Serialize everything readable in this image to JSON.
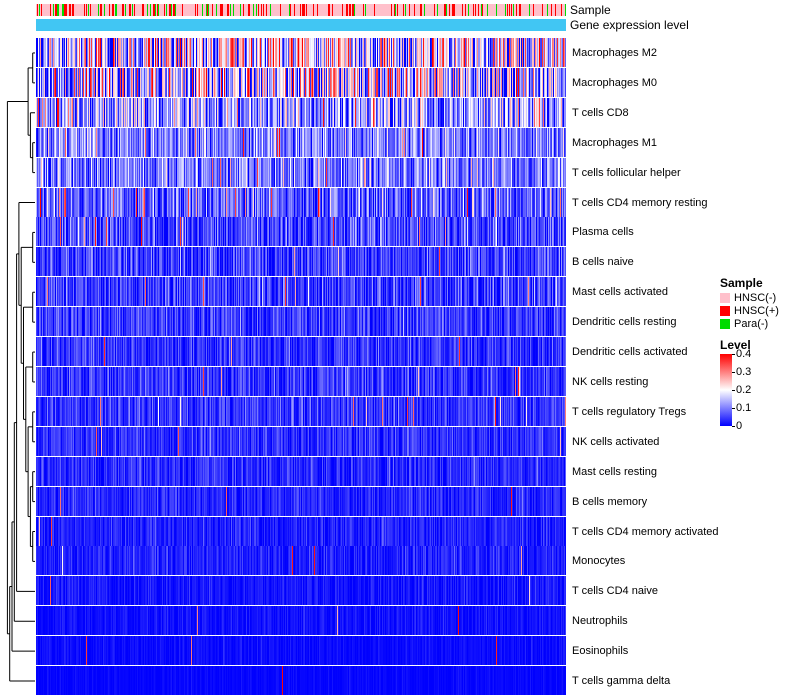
{
  "annotation_tracks": {
    "sample": {
      "label": "Sample"
    },
    "expression": {
      "label": "Gene expression level",
      "color": "#41C6F3"
    }
  },
  "legend": {
    "sample_title": "Sample",
    "sample_items": [
      {
        "label": "HNSC(-)",
        "color": "#FFC0CB"
      },
      {
        "label": "HNSC(+)",
        "color": "#FF0000"
      },
      {
        "label": "Para(-)",
        "color": "#00DB00"
      }
    ],
    "level_title": "Level",
    "level_ticks": [
      "0.4",
      "0.3",
      "0.2",
      "0.1",
      "0"
    ]
  },
  "chart_data": {
    "type": "heatmap",
    "n_samples": 530,
    "value_range": [
      0,
      0.4
    ],
    "colormap": {
      "low": "#0000FE",
      "mid": "#FFFFFF",
      "high": "#FE0000",
      "midpoint": 0.2
    },
    "sample_track_classes": [
      {
        "name": "HNSC(-)",
        "color": "#FFC0CB",
        "p": 0.72
      },
      {
        "name": "HNSC(+)",
        "color": "#FF0000",
        "p": 0.2
      },
      {
        "name": "Para(-)",
        "color": "#00DB00",
        "p": 0.08
      }
    ],
    "expression_track_color": "#41C6F3",
    "rows": [
      {
        "label": "Macrophages M2",
        "mean": 0.17,
        "sd": 0.13,
        "spike": 0.12
      },
      {
        "label": "Macrophages M0",
        "mean": 0.14,
        "sd": 0.13,
        "spike": 0.1
      },
      {
        "label": "T cells CD8",
        "mean": 0.12,
        "sd": 0.08,
        "spike": 0.04
      },
      {
        "label": "Macrophages M1",
        "mean": 0.1,
        "sd": 0.05,
        "spike": 0.02
      },
      {
        "label": "T cells follicular helper",
        "mean": 0.095,
        "sd": 0.05,
        "spike": 0.03
      },
      {
        "label": "T cells CD4 memory resting",
        "mean": 0.07,
        "sd": 0.05,
        "spike": 0.05
      },
      {
        "label": "Plasma cells",
        "mean": 0.055,
        "sd": 0.045,
        "spike": 0.02
      },
      {
        "label": "B cells naive",
        "mean": 0.05,
        "sd": 0.04,
        "spike": 0.015
      },
      {
        "label": "Mast cells activated",
        "mean": 0.045,
        "sd": 0.04,
        "spike": 0.015
      },
      {
        "label": "Dendritic cells resting",
        "mean": 0.045,
        "sd": 0.035,
        "spike": 0.01
      },
      {
        "label": "Dendritic cells activated",
        "mean": 0.04,
        "sd": 0.03,
        "spike": 0.01
      },
      {
        "label": "NK cells resting",
        "mean": 0.04,
        "sd": 0.03,
        "spike": 0.008
      },
      {
        "label": "T cells regulatory Tregs",
        "mean": 0.04,
        "sd": 0.03,
        "spike": 0.008
      },
      {
        "label": "NK cells activated",
        "mean": 0.035,
        "sd": 0.025,
        "spike": 0.006
      },
      {
        "label": "Mast cells resting",
        "mean": 0.03,
        "sd": 0.025,
        "spike": 0.005
      },
      {
        "label": "B cells memory",
        "mean": 0.03,
        "sd": 0.02,
        "spike": 0.005
      },
      {
        "label": "T cells CD4 memory activated",
        "mean": 0.025,
        "sd": 0.02,
        "spike": 0.005
      },
      {
        "label": "Monocytes",
        "mean": 0.025,
        "sd": 0.02,
        "spike": 0.004
      },
      {
        "label": "T cells CD4 naive",
        "mean": 0.015,
        "sd": 0.015,
        "spike": 0.003
      },
      {
        "label": "Neutrophils",
        "mean": 0.012,
        "sd": 0.012,
        "spike": 0.002
      },
      {
        "label": "Eosinophils",
        "mean": 0.008,
        "sd": 0.01,
        "spike": 0.002
      },
      {
        "label": "T cells gamma delta",
        "mean": 0.004,
        "sd": 0.006,
        "spike": 0.001
      }
    ],
    "dendrogram": [
      [
        [
          0,
          1
        ],
        [
          2,
          [
            3,
            4
          ]
        ]
      ],
      [
        [
          [
            [
              [
                5,
                [
                  [
                    6,
                    7
                  ],
                  [
                    [
                      8,
                      9
                    ],
                    [
                      [
                        10,
                        11
                      ],
                      [
                        [
                          12,
                          13
                        ],
                        [
                          [
                            14,
                            15
                          ],
                          [
                            16,
                            17
                          ]
                        ]
                      ]
                    ]
                  ]
                ]
              ],
              18
            ],
            19
          ],
          20
        ],
        21
      ]
    ],
    "legend_position": "right"
  }
}
